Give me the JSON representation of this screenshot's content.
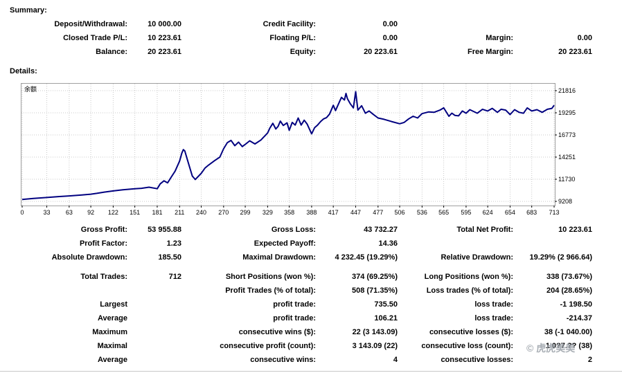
{
  "summary": {
    "title": "Summary:",
    "deposit_label": "Deposit/Withdrawal:",
    "deposit_value": "10 000.00",
    "credit_label": "Credit Facility:",
    "credit_value": "0.00",
    "closed_pl_label": "Closed Trade P/L:",
    "closed_pl_value": "10 223.61",
    "floating_pl_label": "Floating P/L:",
    "floating_pl_value": "0.00",
    "margin_label": "Margin:",
    "margin_value": "0.00",
    "balance_label": "Balance:",
    "balance_value": "20 223.61",
    "equity_label": "Equity:",
    "equity_value": "20 223.61",
    "free_margin_label": "Free Margin:",
    "free_margin_value": "20 223.61"
  },
  "details": {
    "title": "Details:",
    "gross_profit_label": "Gross Profit:",
    "gross_profit_value": "53 955.88",
    "gross_loss_label": "Gross Loss:",
    "gross_loss_value": "43 732.27",
    "total_net_profit_label": "Total Net Profit:",
    "total_net_profit_value": "10 223.61",
    "profit_factor_label": "Profit Factor:",
    "profit_factor_value": "1.23",
    "expected_payoff_label": "Expected Payoff:",
    "expected_payoff_value": "14.36",
    "absolute_drawdown_label": "Absolute Drawdown:",
    "absolute_drawdown_value": "185.50",
    "maximal_drawdown_label": "Maximal Drawdown:",
    "maximal_drawdown_value": "4 232.45 (19.29%)",
    "relative_drawdown_label": "Relative Drawdown:",
    "relative_drawdown_value": "19.29% (2 966.64)",
    "total_trades_label": "Total Trades:",
    "total_trades_value": "712",
    "short_positions_label": "Short Positions (won %):",
    "short_positions_value": "374 (69.25%)",
    "long_positions_label": "Long Positions (won %):",
    "long_positions_value": "338 (73.67%)",
    "profit_trades_label": "Profit Trades (% of total):",
    "profit_trades_value": "508 (71.35%)",
    "loss_trades_label": "Loss trades (% of total):",
    "loss_trades_value": "204 (28.65%)",
    "largest_label": "Largest",
    "largest_profit_label": "profit trade:",
    "largest_profit_value": "735.50",
    "largest_loss_label": "loss trade:",
    "largest_loss_value": "-1 198.50",
    "average_label": "Average",
    "average_profit_label": "profit trade:",
    "average_profit_value": "106.21",
    "average_loss_label": "loss trade:",
    "average_loss_value": "-214.37",
    "maximum_label": "Maximum",
    "max_cons_wins_label": "consecutive wins ($):",
    "max_cons_wins_value": "22 (3 143.09)",
    "max_cons_losses_label": "consecutive losses ($):",
    "max_cons_losses_value": "38 (-1 040.00)",
    "maximal_label": "Maximal",
    "maximal_cons_profit_label": "consecutive profit (count):",
    "maximal_cons_profit_value": "3 143.09 (22)",
    "maximal_cons_loss_label": "consecutive loss (count):",
    "maximal_cons_loss_value": "1 0?7.?? (38)",
    "average2_label": "Average",
    "avg_cons_wins_label": "consecutive wins:",
    "avg_cons_wins_value": "4",
    "avg_cons_losses_label": "consecutive losses:",
    "avg_cons_losses_value": "2"
  },
  "watermark": "© 虎虎美美",
  "chart_data": {
    "type": "line",
    "title": "余额",
    "line_color": "#000080",
    "grid": "dotted",
    "x_ticks": [
      0,
      33,
      63,
      92,
      122,
      151,
      181,
      211,
      240,
      270,
      299,
      329,
      358,
      388,
      417,
      447,
      477,
      506,
      536,
      565,
      595,
      624,
      654,
      683,
      713
    ],
    "y_ticks": [
      9208,
      11730,
      14251,
      16773,
      19295,
      21816
    ],
    "xlim": [
      0,
      713
    ],
    "ylim": [
      9208,
      21816
    ],
    "series": [
      {
        "x": [
          0,
          15,
          33,
          50,
          63,
          80,
          92,
          100,
          110,
          122,
          135,
          151,
          160,
          170,
          181,
          185,
          190,
          195,
          200,
          205,
          211,
          214,
          216,
          218,
          222,
          228,
          232,
          240,
          245,
          250,
          258,
          265,
          270,
          275,
          280,
          285,
          290,
          295,
          299,
          305,
          312,
          320,
          329,
          332,
          336,
          340,
          343,
          346,
          350,
          355,
          358,
          362,
          366,
          370,
          374,
          378,
          382,
          388,
          392,
          396,
          400,
          404,
          408,
          412,
          417,
          420,
          424,
          428,
          432,
          434,
          436,
          440,
          444,
          447,
          450,
          455,
          460,
          465,
          470,
          477,
          485,
          495,
          506,
          512,
          518,
          524,
          530,
          536,
          545,
          552,
          560,
          565,
          568,
          572,
          576,
          580,
          585,
          590,
          595,
          600,
          610,
          617,
          624,
          630,
          637,
          642,
          648,
          654,
          660,
          666,
          672,
          677,
          683,
          690,
          697,
          704,
          710,
          713
        ],
        "y": [
          9420,
          9550,
          9650,
          9760,
          9830,
          9940,
          10030,
          10120,
          10260,
          10400,
          10530,
          10640,
          10700,
          10820,
          10650,
          11200,
          11550,
          11320,
          12000,
          12650,
          13800,
          14700,
          15100,
          14950,
          13800,
          12100,
          11700,
          12400,
          13000,
          13350,
          13850,
          14250,
          15200,
          15900,
          16150,
          15550,
          15950,
          15450,
          15700,
          16100,
          15750,
          16200,
          17000,
          17550,
          18100,
          17450,
          17750,
          18350,
          17850,
          18150,
          17300,
          18200,
          17900,
          18700,
          17900,
          18450,
          18000,
          16900,
          17600,
          17900,
          18300,
          18600,
          18750,
          19150,
          20150,
          19550,
          20300,
          21050,
          20750,
          21500,
          20900,
          20300,
          19850,
          21700,
          19600,
          20100,
          19250,
          19500,
          19150,
          18700,
          18550,
          18300,
          18050,
          18200,
          18600,
          18900,
          18700,
          19200,
          19400,
          19350,
          19600,
          19850,
          19450,
          18900,
          19250,
          19000,
          18950,
          19500,
          19250,
          19650,
          19250,
          19700,
          19500,
          19800,
          19350,
          19700,
          19600,
          19100,
          19650,
          19350,
          19250,
          19850,
          19500,
          19650,
          19350,
          19700,
          19800,
          20150
        ]
      }
    ]
  }
}
